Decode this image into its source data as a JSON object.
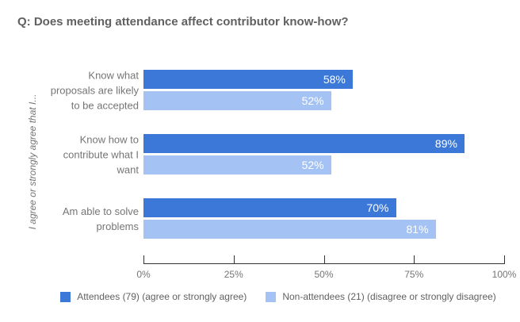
{
  "chart_data": {
    "type": "bar",
    "orientation": "horizontal",
    "title": "Q: Does meeting attendance affect contributor know-how?",
    "ylabel": "I agree or strongly agree that I...",
    "xlabel": "",
    "categories": [
      "Know what proposals are likely to be accepted",
      "Know how to contribute what I want",
      "Am able to solve problems"
    ],
    "series": [
      {
        "name": "Attendees (79) (agree or strongly agree)",
        "color": "#3C78D8",
        "values": [
          58,
          89,
          70
        ],
        "labels": [
          "58%",
          "89%",
          "70%"
        ]
      },
      {
        "name": "Non-attendees (21) (disagree or strongly disagree)",
        "color": "#A4C2F4",
        "values": [
          52,
          52,
          81
        ],
        "labels": [
          "52%",
          "52%",
          "81%"
        ]
      }
    ],
    "x_ticks": [
      {
        "value": 0,
        "label": "0%"
      },
      {
        "value": 25,
        "label": "25%"
      },
      {
        "value": 50,
        "label": "50%"
      },
      {
        "value": 75,
        "label": "75%"
      },
      {
        "value": 100,
        "label": "100%"
      }
    ],
    "xlim": [
      0,
      100
    ],
    "grid": false,
    "legend_position": "bottom",
    "value_label_color": "#ffffff",
    "text_colors": {
      "title": "#616161",
      "axis_labels": "#757575",
      "legend": "#616161",
      "axis_line": "#333333"
    }
  }
}
